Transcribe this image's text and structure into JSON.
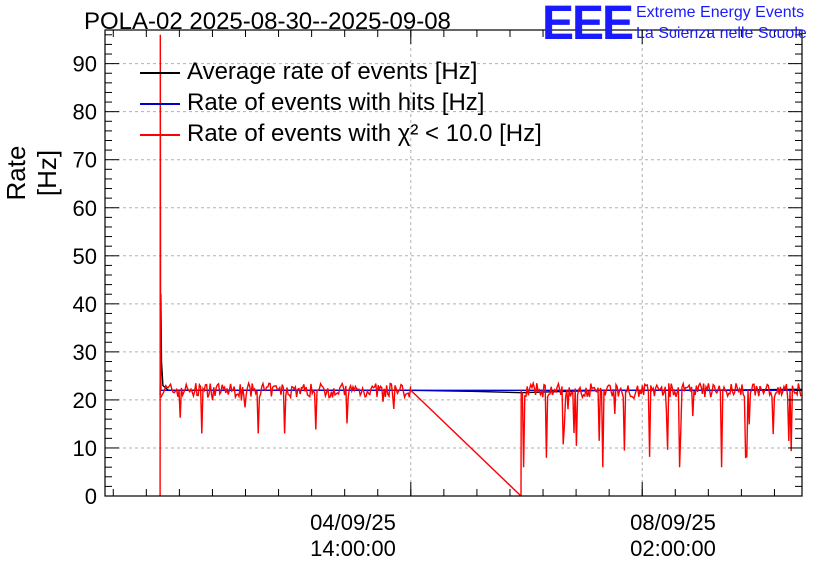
{
  "header": {
    "title": "POLA-02 2025-08-30--2025-09-08"
  },
  "logo": {
    "mark": "EEE",
    "line1": "Extreme Energy Events",
    "line2": "La Scienza nelle Scuole",
    "color": "#1a1aff"
  },
  "chart_data": {
    "type": "line",
    "title": "POLA-02 2025-08-30--2025-09-08",
    "ylabel": "Rate [Hz]",
    "xlabel": "",
    "ylim": [
      0,
      97
    ],
    "yticks": [
      0,
      10,
      20,
      30,
      40,
      50,
      60,
      70,
      80,
      90
    ],
    "xlim": [
      "2025-08-30T23:00:00",
      "2025-09-10T12:00:00"
    ],
    "xtick_labels": [
      {
        "at": "2025-09-04T14:00:00",
        "date": "04/09/25",
        "time": "14:00:00"
      },
      {
        "at": "2025-09-08T02:00:00",
        "date": "08/09/25",
        "time": "02:00:00"
      }
    ],
    "grid": true,
    "legend_position": "top-left",
    "series": [
      {
        "name": "Average rate of events [Hz]",
        "color": "#000000",
        "x": [
          "2025-08-31T19:00:00",
          "2025-08-31T19:15:00",
          "2025-08-31T19:30:00",
          "2025-08-31T20:00:00",
          "2025-08-31T22:00:00",
          "2025-09-02T00:00:00",
          "2025-09-03T00:00:00",
          "2025-09-04T14:00:00",
          "2025-09-05T12:00:00",
          "2025-09-06T06:00:00",
          "2025-09-07T12:00:00",
          "2025-09-09T00:00:00",
          "2025-09-10T12:00:00"
        ],
        "values": [
          21,
          42,
          28,
          23,
          22,
          22,
          22,
          22,
          21.8,
          21.5,
          22,
          22,
          22.2
        ]
      },
      {
        "name": "Rate of events with hits [Hz]",
        "color": "#0000cc",
        "x": [
          "2025-08-31T19:00:00",
          "2025-09-04T14:00:00",
          "2025-09-06T06:00:00",
          "2025-09-10T12:00:00"
        ],
        "values": [
          22,
          22,
          22,
          22
        ]
      },
      {
        "name": "Rate of events with χ² < 10.0 [Hz]",
        "color": "#ff0000",
        "segments": [
          {
            "x": [
              "2025-08-31T19:00:00",
              "2025-08-31T19:05:00",
              "2025-08-31T19:10:00",
              "2025-08-31T19:20:00"
            ],
            "values": [
              0,
              96,
              30,
              22
            ]
          },
          {
            "x_range": [
              "2025-08-31T19:20:00",
              "2025-09-04T14:00:00"
            ],
            "mean": 22,
            "spread": [
              13,
              24
            ]
          },
          {
            "x": [
              "2025-09-04T14:00:00",
              "2025-09-06T06:00:00"
            ],
            "values": [
              22,
              0
            ]
          },
          {
            "x": [
              "2025-09-06T06:00:00",
              "2025-09-06T06:05:00"
            ],
            "values": [
              0,
              22
            ]
          },
          {
            "x_range": [
              "2025-09-06T06:05:00",
              "2025-09-10T12:00:00"
            ],
            "mean": 22,
            "spread": [
              6,
              24
            ]
          }
        ]
      }
    ]
  }
}
